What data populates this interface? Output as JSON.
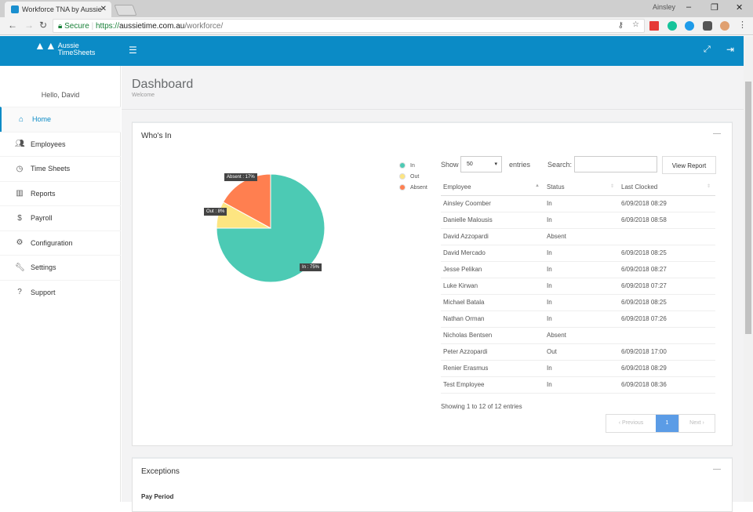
{
  "browser": {
    "tab_title": "Workforce TNA by Aussie",
    "user": "Ainsley",
    "secure_label": "Secure",
    "url_scheme": "https://",
    "url_host": "aussietime.com.au",
    "url_path": "/workforce/"
  },
  "app": {
    "logo_line1": "Aussie",
    "logo_line2": "TimeSheets",
    "menu_icon": "hamburger-icon"
  },
  "sidebar": {
    "greeting": "Hello, David",
    "items": [
      {
        "label": "Home",
        "icon": "home-icon",
        "active": true
      },
      {
        "label": "Employees",
        "icon": "users-icon"
      },
      {
        "label": "Time Sheets",
        "icon": "clock-icon"
      },
      {
        "label": "Reports",
        "icon": "bar-chart-icon"
      },
      {
        "label": "Payroll",
        "icon": "dollar-icon"
      },
      {
        "label": "Configuration",
        "icon": "gear-icon"
      },
      {
        "label": "Settings",
        "icon": "wrench-icon"
      },
      {
        "label": "Support",
        "icon": "question-icon"
      }
    ]
  },
  "page": {
    "title": "Dashboard",
    "subtitle": "Welcome"
  },
  "whos_in": {
    "title": "Who's In",
    "show_label": "Show",
    "entries_value": "50",
    "entries_label": "entries",
    "search_label": "Search:",
    "search_value": "",
    "view_report": "View Report",
    "columns": [
      "Employee",
      "Status",
      "Last Clocked"
    ],
    "rows": [
      [
        "Ainsley Coomber",
        "In",
        "6/09/2018 08:29"
      ],
      [
        "Danielle Malousis",
        "In",
        "6/09/2018 08:58"
      ],
      [
        "David Azzopardi",
        "Absent",
        ""
      ],
      [
        "David Mercado",
        "In",
        "6/09/2018 08:25"
      ],
      [
        "Jesse Pelikan",
        "In",
        "6/09/2018 08:27"
      ],
      [
        "Luke Kirwan",
        "In",
        "6/09/2018 07:27"
      ],
      [
        "Michael Batala",
        "In",
        "6/09/2018 08:25"
      ],
      [
        "Nathan Orman",
        "In",
        "6/09/2018 07:26"
      ],
      [
        "Nicholas Bentsen",
        "Absent",
        ""
      ],
      [
        "Peter Azzopardi",
        "Out",
        "6/09/2018 17:00"
      ],
      [
        "Renier Erasmus",
        "In",
        "6/09/2018 08:29"
      ],
      [
        "Test Employee",
        "In",
        "6/09/2018 08:36"
      ]
    ],
    "info": "Showing 1 to 12 of 12 entries",
    "pager": {
      "previous": "Previous",
      "current": "1",
      "next": "Next"
    }
  },
  "chart_data": {
    "type": "pie",
    "categories": [
      "In",
      "Out",
      "Absent"
    ],
    "values": [
      75,
      8,
      17
    ],
    "labels": [
      "In : 75%",
      "Out : 8%",
      "Absent : 17%"
    ],
    "colors": [
      "#4ccab4",
      "#fde581",
      "#ff7f50"
    ],
    "legend": "top-right"
  },
  "exceptions": {
    "title": "Exceptions",
    "pay_period_label": "Pay Period"
  }
}
